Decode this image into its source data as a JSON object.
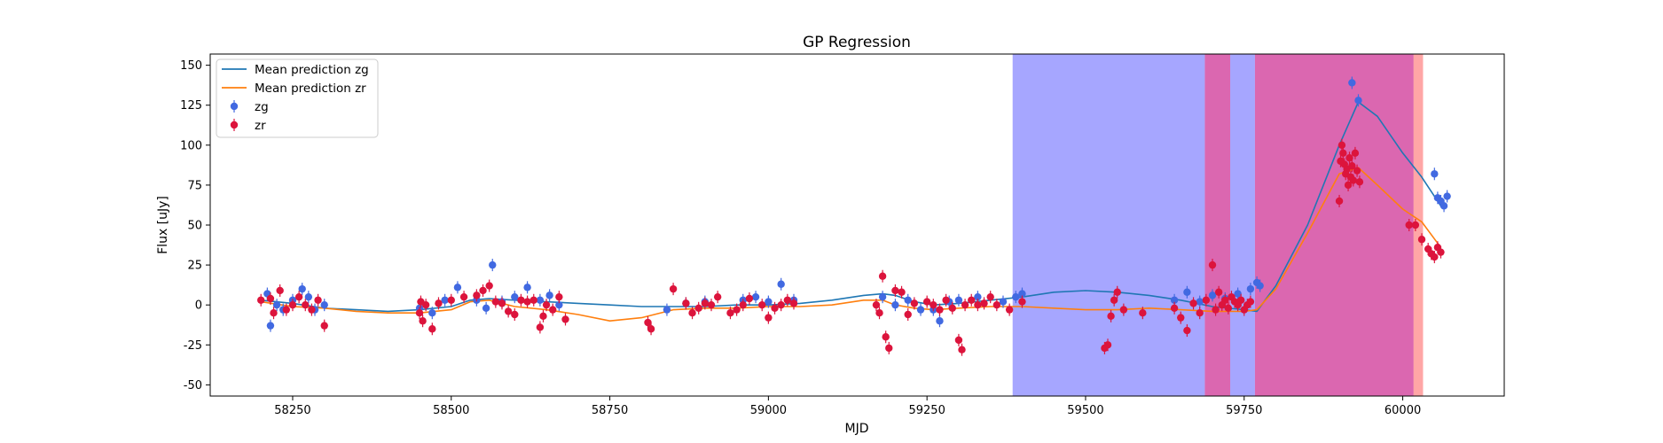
{
  "chart_data": {
    "type": "scatter",
    "title": "GP Regression",
    "xlabel": "MJD",
    "ylabel": "Flux [uJy]",
    "xlim": [
      58120,
      60160
    ],
    "ylim": [
      -57,
      157
    ],
    "xticks": [
      58250,
      58500,
      58750,
      59000,
      59250,
      59500,
      59750,
      60000
    ],
    "yticks": [
      -50,
      -25,
      0,
      25,
      50,
      75,
      100,
      125,
      150
    ],
    "legend_position": "upper-left",
    "legend": [
      {
        "label": "Mean prediction zg",
        "kind": "line",
        "color": "#1f77b4"
      },
      {
        "label": "Mean prediction zr",
        "kind": "line",
        "color": "#ff7f0e"
      },
      {
        "label": "zg",
        "kind": "marker",
        "color": "#4169e1"
      },
      {
        "label": "zr",
        "kind": "marker",
        "color": "#dc143c"
      }
    ],
    "shaded_regions": [
      {
        "x_start": 59385,
        "x_end": 59688,
        "color": "#0000ff",
        "opacity": 0.35
      },
      {
        "x_start": 59728,
        "x_end": 59767,
        "color": "#0000ff",
        "opacity": 0.35
      },
      {
        "x_start": 59688,
        "x_end": 59728,
        "color": "#c71585",
        "opacity": 0.65
      },
      {
        "x_start": 59767,
        "x_end": 60017,
        "color": "#c71585",
        "opacity": 0.65
      },
      {
        "x_start": 60017,
        "x_end": 60032,
        "color": "#ff0000",
        "opacity": 0.35
      }
    ],
    "series": [
      {
        "name": "Mean prediction zg",
        "type": "line",
        "color": "#1f77b4",
        "x": [
          58200,
          58250,
          58300,
          58350,
          58400,
          58450,
          58500,
          58530,
          58560,
          58600,
          58650,
          58700,
          58750,
          58800,
          58850,
          58900,
          58950,
          59000,
          59050,
          59100,
          59150,
          59180,
          59200,
          59230,
          59260,
          59300,
          59350,
          59400,
          59450,
          59500,
          59550,
          59600,
          59650,
          59700,
          59750,
          59770,
          59800,
          59850,
          59900,
          59930,
          59960,
          60000,
          60030,
          60060
        ],
        "y": [
          3,
          1,
          -2,
          -3,
          -4,
          -3,
          -1,
          3,
          4,
          3,
          2,
          1,
          0,
          -1,
          -1,
          -1,
          0,
          0,
          1,
          3,
          6,
          7,
          6,
          2,
          0,
          1,
          3,
          5,
          8,
          9,
          8,
          6,
          3,
          -1,
          -3,
          -4,
          12,
          50,
          100,
          127,
          118,
          95,
          80,
          62
        ]
      },
      {
        "name": "Mean prediction zr",
        "type": "line",
        "color": "#ff7f0e",
        "x": [
          58200,
          58250,
          58300,
          58350,
          58400,
          58450,
          58500,
          58530,
          58560,
          58600,
          58650,
          58700,
          58750,
          58800,
          58850,
          58900,
          58950,
          59000,
          59050,
          59100,
          59150,
          59180,
          59200,
          59230,
          59260,
          59300,
          59350,
          59400,
          59450,
          59500,
          59550,
          59600,
          59650,
          59700,
          59750,
          59770,
          59800,
          59850,
          59900,
          59930,
          59960,
          60000,
          60030,
          60060
        ],
        "y": [
          2,
          -1,
          -2,
          -4,
          -5,
          -5,
          -3,
          2,
          3,
          -1,
          -3,
          -6,
          -10,
          -8,
          -3,
          -2,
          -2,
          -1,
          -1,
          0,
          3,
          3,
          0,
          -2,
          -3,
          -2,
          -1,
          -1,
          -2,
          -3,
          -3,
          -2,
          -3,
          -4,
          -4,
          -3,
          10,
          45,
          82,
          86,
          75,
          60,
          52,
          36
        ]
      },
      {
        "name": "zg",
        "type": "scatter",
        "color": "#4169e1",
        "x": [
          58210,
          58215,
          58225,
          58235,
          58250,
          58265,
          58275,
          58285,
          58300,
          58450,
          58470,
          58490,
          58510,
          58540,
          58555,
          58565,
          58580,
          58600,
          58620,
          58640,
          58655,
          58670,
          58840,
          58870,
          58900,
          58960,
          58980,
          59000,
          59020,
          59040,
          59180,
          59200,
          59220,
          59240,
          59260,
          59270,
          59285,
          59300,
          59330,
          59370,
          59390,
          59400,
          59640,
          59660,
          59680,
          59700,
          59720,
          59740,
          59760,
          59770,
          59775,
          59920,
          59930,
          60050,
          60055,
          60060,
          60065,
          60070
        ],
        "y": [
          7,
          -13,
          0,
          -3,
          3,
          10,
          5,
          -3,
          0,
          -2,
          -5,
          3,
          11,
          3,
          -2,
          25,
          2,
          5,
          11,
          3,
          6,
          0,
          -3,
          1,
          2,
          3,
          5,
          2,
          13,
          3,
          5,
          0,
          3,
          -3,
          -3,
          -10,
          2,
          3,
          5,
          2,
          5,
          7,
          3,
          8,
          2,
          6,
          4,
          7,
          10,
          14,
          12,
          139,
          128,
          82,
          67,
          65,
          62,
          68
        ]
      },
      {
        "name": "zr",
        "type": "scatter",
        "color": "#dc143c",
        "x": [
          58200,
          58215,
          58220,
          58230,
          58240,
          58250,
          58260,
          58270,
          58280,
          58290,
          58300,
          58450,
          58452,
          58455,
          58460,
          58470,
          58480,
          58500,
          58520,
          58540,
          58550,
          58560,
          58570,
          58580,
          58590,
          58600,
          58610,
          58620,
          58630,
          58640,
          58645,
          58650,
          58660,
          58670,
          58680,
          58810,
          58815,
          58850,
          58870,
          58880,
          58890,
          58900,
          58910,
          58920,
          58940,
          58950,
          58960,
          58970,
          58990,
          59000,
          59010,
          59020,
          59030,
          59040,
          59170,
          59175,
          59180,
          59185,
          59190,
          59200,
          59210,
          59220,
          59230,
          59250,
          59260,
          59270,
          59280,
          59290,
          59300,
          59305,
          59310,
          59320,
          59330,
          59340,
          59350,
          59360,
          59380,
          59400,
          59530,
          59535,
          59540,
          59545,
          59550,
          59560,
          59590,
          59640,
          59650,
          59660,
          59670,
          59680,
          59690,
          59700,
          59705,
          59710,
          59715,
          59720,
          59725,
          59730,
          59735,
          59740,
          59745,
          59750,
          59755,
          59760,
          59900,
          59902,
          59904,
          59906,
          59908,
          59910,
          59912,
          59914,
          59916,
          59918,
          59920,
          59922,
          59925,
          59928,
          59932,
          60010,
          60020,
          60030,
          60040,
          60045,
          60050,
          60055,
          60060
        ],
        "y": [
          3,
          4,
          -5,
          9,
          -3,
          0,
          5,
          0,
          -3,
          3,
          -13,
          -5,
          2,
          -10,
          0,
          -15,
          1,
          3,
          5,
          6,
          9,
          12,
          2,
          1,
          -4,
          -6,
          3,
          2,
          3,
          -14,
          -7,
          0,
          -3,
          5,
          -9,
          -11,
          -15,
          10,
          1,
          -5,
          -2,
          1,
          0,
          5,
          -5,
          -3,
          0,
          4,
          0,
          -8,
          -2,
          0,
          3,
          1,
          0,
          -5,
          18,
          -20,
          -27,
          9,
          8,
          -6,
          1,
          2,
          0,
          -3,
          3,
          -2,
          -22,
          -28,
          0,
          3,
          0,
          1,
          5,
          0,
          -3,
          2,
          -27,
          -25,
          -7,
          3,
          8,
          -3,
          -5,
          -2,
          -8,
          -16,
          1,
          -5,
          3,
          25,
          -3,
          8,
          0,
          3,
          -2,
          5,
          2,
          0,
          3,
          -3,
          0,
          2,
          65,
          90,
          100,
          95,
          88,
          82,
          85,
          75,
          92,
          80,
          87,
          78,
          95,
          84,
          77,
          50,
          50,
          41,
          35,
          32,
          30,
          36,
          33
        ]
      }
    ]
  }
}
